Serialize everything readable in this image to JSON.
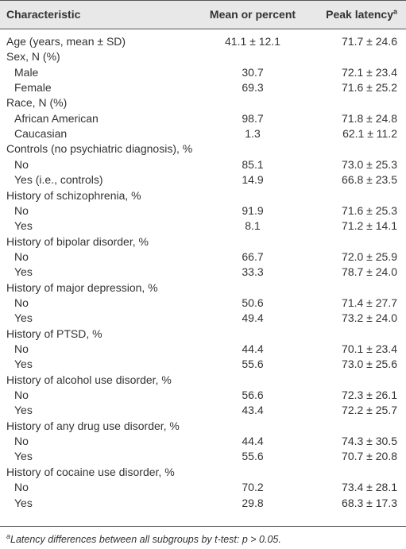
{
  "table": {
    "header": [
      "Characteristic",
      "Mean or percent",
      "Peak latency"
    ],
    "header_sup": "a",
    "groups": [
      {
        "label": "Age (years, mean ± SD)",
        "mean": "41.1 ± 12.1",
        "latency": "71.7 ± 24.6"
      },
      {
        "label": "Sex, N (%)",
        "rows": [
          {
            "label": "Male",
            "mean": "30.7",
            "latency": "72.1 ± 23.4"
          },
          {
            "label": "Female",
            "mean": "69.3",
            "latency": "71.6 ± 25.2"
          }
        ]
      },
      {
        "label": "Race, N (%)",
        "rows": [
          {
            "label": "African American",
            "mean": "98.7",
            "latency": "71.8 ± 24.8"
          },
          {
            "label": "Caucasian",
            "mean": "1.3",
            "latency": "62.1 ± 11.2"
          }
        ]
      },
      {
        "label": "Controls (no psychiatric diagnosis), %",
        "rows": [
          {
            "label": "No",
            "mean": "85.1",
            "latency": "73.0 ± 25.3"
          },
          {
            "label": "Yes (i.e., controls)",
            "mean": "14.9",
            "latency": "66.8 ± 23.5"
          }
        ]
      },
      {
        "label": "History of schizophrenia, %",
        "rows": [
          {
            "label": "No",
            "mean": "91.9",
            "latency": "71.6 ± 25.3"
          },
          {
            "label": "Yes",
            "mean": "8.1",
            "latency": "71.2 ± 14.1"
          }
        ]
      },
      {
        "label": "History of bipolar disorder, %",
        "rows": [
          {
            "label": "No",
            "mean": "66.7",
            "latency": "72.0 ± 25.9"
          },
          {
            "label": "Yes",
            "mean": "33.3",
            "latency": "78.7 ± 24.0"
          }
        ]
      },
      {
        "label": "History of major depression, %",
        "rows": [
          {
            "label": "No",
            "mean": "50.6",
            "latency": "71.4 ± 27.7"
          },
          {
            "label": "Yes",
            "mean": "49.4",
            "latency": "73.2 ± 24.0"
          }
        ]
      },
      {
        "label": "History of PTSD, %",
        "rows": [
          {
            "label": "No",
            "mean": "44.4",
            "latency": "70.1 ± 23.4"
          },
          {
            "label": "Yes",
            "mean": "55.6",
            "latency": "73.0 ± 25.6"
          }
        ]
      },
      {
        "label": "History of alcohol use disorder, %",
        "rows": [
          {
            "label": "No",
            "mean": "56.6",
            "latency": "72.3 ± 26.1"
          },
          {
            "label": "Yes",
            "mean": "43.4",
            "latency": "72.2 ± 25.7"
          }
        ]
      },
      {
        "label": "History of any drug use disorder, %",
        "rows": [
          {
            "label": "No",
            "mean": "44.4",
            "latency": "74.3 ± 30.5"
          },
          {
            "label": "Yes",
            "mean": "55.6",
            "latency": "70.7 ± 20.8"
          }
        ]
      },
      {
        "label": "History of cocaine use disorder, %",
        "rows": [
          {
            "label": "No",
            "mean": "70.2",
            "latency": "73.4 ± 28.1"
          },
          {
            "label": "Yes",
            "mean": "29.8",
            "latency": "68.3 ± 17.3"
          }
        ]
      }
    ]
  },
  "footnote": {
    "sup": "a",
    "text": "Latency differences between all subgroups by t-test: p > 0.05."
  }
}
